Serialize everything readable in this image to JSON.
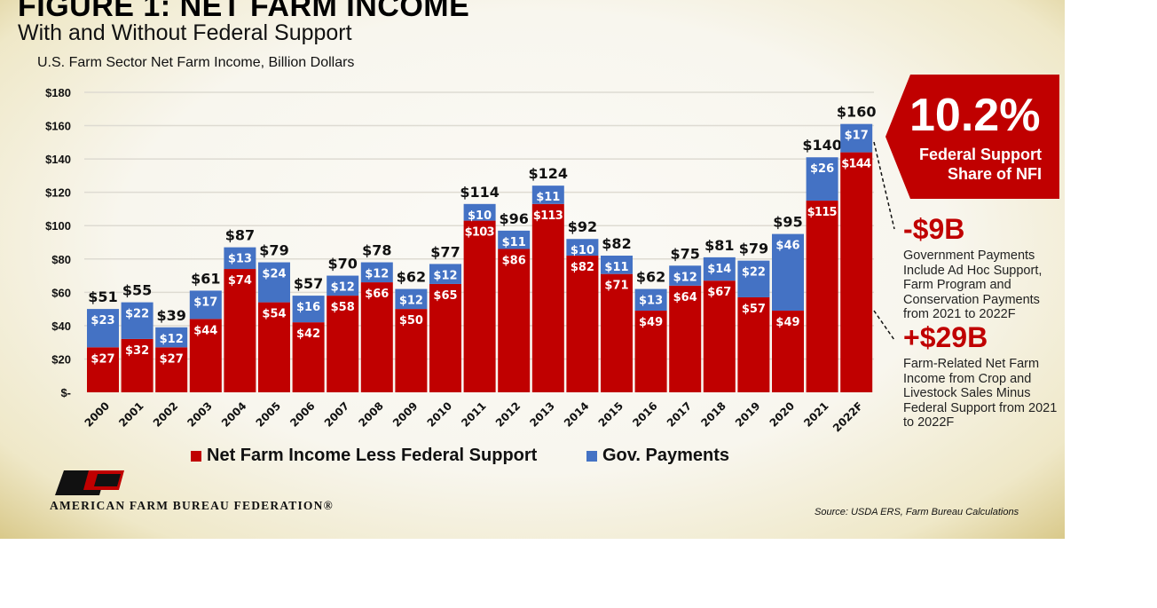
{
  "title": "FIGURE 1: NET FARM INCOME",
  "subtitle": "With and Without Federal Support",
  "unit_label": "U.S. Farm Sector Net Farm Income, Billion Dollars",
  "callout": {
    "percent": "10.2%",
    "label": "Federal Support Share of NFI",
    "color": "#c00000"
  },
  "annotations": [
    {
      "value": "-$9B",
      "text": "Government Payments Include Ad Hoc Support, Farm Program and Conservation Payments from 2021 to 2022F"
    },
    {
      "value": "+$29B",
      "text": "Farm-Related Net Farm Income from Crop and Livestock Sales Minus Federal Support from 2021 to 2022F"
    }
  ],
  "legend": [
    "Net Farm Income Less Federal Support",
    "Gov. Payments"
  ],
  "logo": {
    "text": "AMERICAN FARM BUREAU FEDERATION®",
    "mark": "FB"
  },
  "source": "Source: USDA ERS, Farm Bureau Calculations",
  "chart_data": {
    "type": "bar",
    "stacked": true,
    "categories": [
      "2000",
      "2001",
      "2002",
      "2003",
      "2004",
      "2005",
      "2006",
      "2007",
      "2008",
      "2009",
      "2010",
      "2011",
      "2012",
      "2013",
      "2014",
      "2015",
      "2016",
      "2017",
      "2018",
      "2019",
      "2020",
      "2021",
      "2022F"
    ],
    "series": [
      {
        "name": "Net Farm Income Less Federal Support",
        "color": "#c00000",
        "values": [
          27,
          32,
          27,
          44,
          74,
          54,
          42,
          58,
          66,
          50,
          65,
          103,
          86,
          113,
          82,
          71,
          49,
          64,
          67,
          57,
          49,
          115,
          144
        ]
      },
      {
        "name": "Gov. Payments",
        "color": "#4472c4",
        "values": [
          23,
          22,
          12,
          17,
          13,
          24,
          16,
          12,
          12,
          12,
          12,
          10,
          11,
          11,
          10,
          11,
          13,
          12,
          14,
          22,
          46,
          26,
          17
        ]
      }
    ],
    "totals": [
      51,
      55,
      39,
      61,
      87,
      79,
      57,
      70,
      78,
      62,
      77,
      114,
      96,
      124,
      92,
      82,
      62,
      75,
      81,
      79,
      95,
      140,
      160
    ],
    "yticks": [
      "$-",
      "$20",
      "$40",
      "$60",
      "$80",
      "$100",
      "$120",
      "$140",
      "$160",
      "$180"
    ],
    "ylim": [
      0,
      180
    ],
    "grid": true,
    "legend_position": "bottom",
    "xlabel": "",
    "ylabel": ""
  }
}
